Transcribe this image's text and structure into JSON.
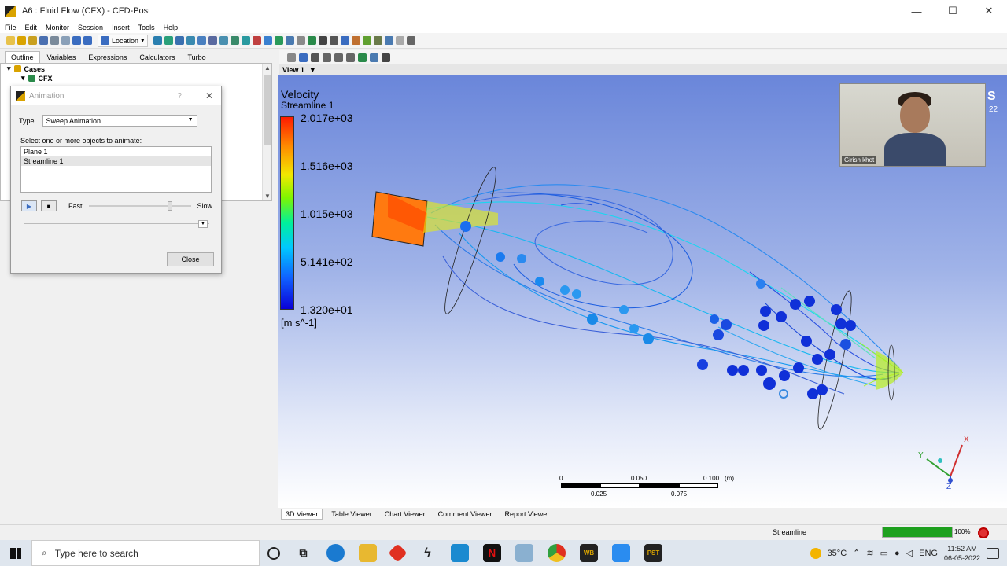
{
  "window": {
    "title": "A6 : Fluid Flow (CFX) - CFD-Post",
    "controls": [
      "—",
      "☐",
      "✕"
    ]
  },
  "menu": [
    "File",
    "Edit",
    "Monitor",
    "Session",
    "Insert",
    "Tools",
    "Help"
  ],
  "toolbar": {
    "location_label": "Location"
  },
  "left_tabs": [
    "Outline",
    "Variables",
    "Expressions",
    "Calculators",
    "Turbo"
  ],
  "tree": {
    "root": "Cases",
    "child": "CFX"
  },
  "dialog": {
    "title": "Animation",
    "help": "?",
    "close_x": "✕",
    "type_label": "Type",
    "type_value": "Sweep Animation",
    "select_label": "Select one or more objects to animate:",
    "objects": [
      "Plane 1",
      "Streamline 1"
    ],
    "selected_object": "Streamline 1",
    "fast_label": "Fast",
    "slow_label": "Slow",
    "close_button": "Close"
  },
  "view": {
    "header": "View 1",
    "legend_title": "Velocity",
    "legend_subtitle": "Streamline 1",
    "ticks": [
      "2.017e+03",
      "1.516e+03",
      "1.015e+03",
      "5.141e+02",
      "1.320e+01"
    ],
    "units": "[m s^-1]",
    "webcam_name": "Girish khot",
    "corner_text": "S",
    "corner_text2": "22",
    "scale": {
      "top": [
        "0",
        "0.050",
        "0.100",
        "(m)"
      ],
      "bottom": [
        "0.025",
        "0.075"
      ]
    },
    "axes": {
      "x": "X",
      "y": "Y",
      "z": "Z"
    }
  },
  "viewer_tabs": [
    "3D Viewer",
    "Table Viewer",
    "Chart Viewer",
    "Comment Viewer",
    "Report Viewer"
  ],
  "status": {
    "text": "Streamline",
    "progress": 100,
    "progress_label": "100%"
  },
  "taskbar": {
    "search_placeholder": "Type here to search",
    "temperature": "35°C",
    "language": "ENG",
    "time": "11:52 AM",
    "date": "06-05-2022",
    "apps": [
      "WB",
      "PST"
    ]
  },
  "colors": {
    "progress": "#1ea01e",
    "accent": "#3a6cc0"
  }
}
